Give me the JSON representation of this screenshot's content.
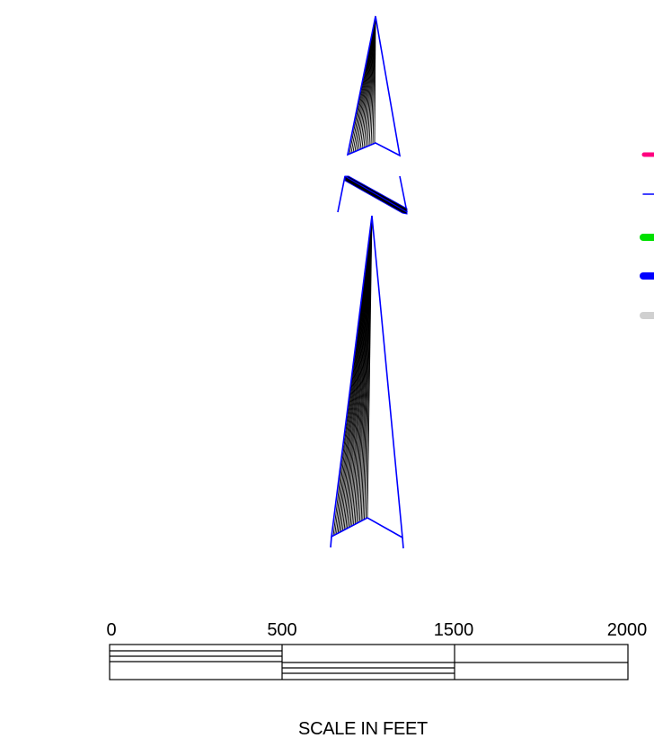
{
  "north_arrow": {
    "outline_color": "#0000ff",
    "hatch_color": "#000000"
  },
  "legend": {
    "swatches": [
      {
        "color": "#ff0080",
        "style": "line-medium"
      },
      {
        "color": "#0000ff",
        "style": "line-thin"
      },
      {
        "color": "#00e000",
        "style": "line-thick"
      },
      {
        "color": "#0000ff",
        "style": "line-thick"
      },
      {
        "color": "#d0d0d0",
        "style": "line-thick"
      }
    ]
  },
  "scale_bar": {
    "tick_labels": [
      "0",
      "500",
      "1500",
      "2000"
    ],
    "title": "SCALE IN FEET"
  }
}
